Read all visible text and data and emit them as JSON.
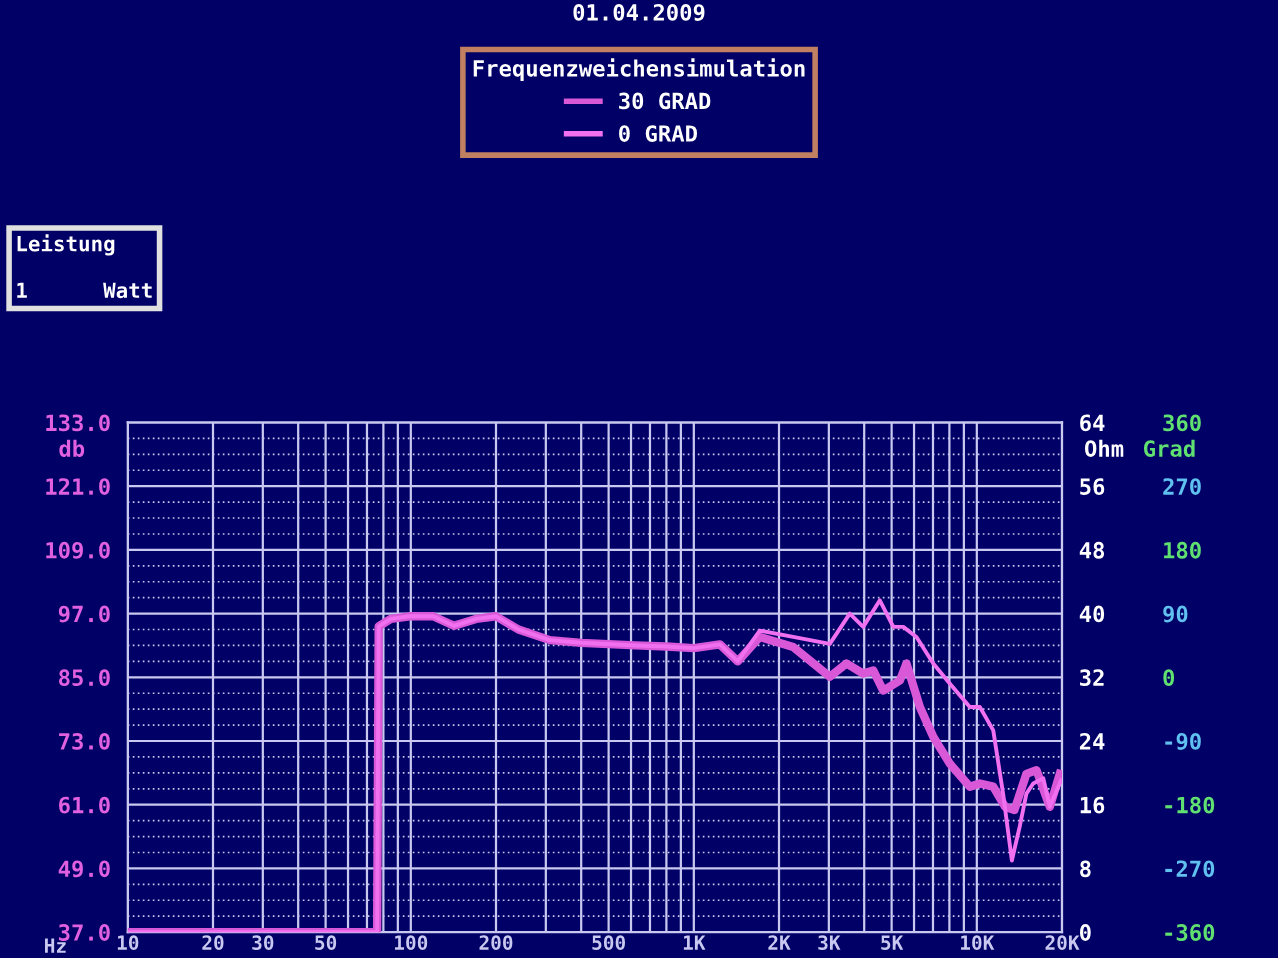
{
  "chart_data": {
    "type": "line",
    "title": "Frequenzweichensimulation",
    "xlabel": "Hz",
    "ylabel": "db",
    "y2label": "Ohm",
    "y3label": "Grad",
    "annotations": [
      "01.04.2009",
      "Leistung",
      "1      Watt"
    ],
    "log": "x",
    "grid": true,
    "legend": "top",
    "marker": "none",
    "line_style": "solid",
    "xlim": [
      10,
      20000
    ],
    "xticks": [
      10,
      20,
      30,
      {
        "value": 40,
        "label": null
      },
      50,
      {
        "value": 60,
        "label": null
      },
      {
        "value": 70,
        "label": null
      },
      {
        "value": 80,
        "label": null
      },
      {
        "value": 90,
        "label": null
      },
      100,
      200,
      {
        "value": 300,
        "label": null
      },
      {
        "value": 400,
        "label": null
      },
      500,
      {
        "value": 600,
        "label": null
      },
      {
        "value": 700,
        "label": null
      },
      {
        "value": 800,
        "label": null
      },
      {
        "value": 900,
        "label": null
      },
      {
        "value": 1000,
        "label": "1K"
      },
      {
        "value": 2000,
        "label": "2K"
      },
      {
        "value": 3000,
        "label": "3K"
      },
      {
        "value": 4000,
        "label": null
      },
      {
        "value": 5000,
        "label": "5K"
      },
      {
        "value": 6000,
        "label": null
      },
      {
        "value": 7000,
        "label": null
      },
      {
        "value": 8000,
        "label": null
      },
      {
        "value": 9000,
        "label": null
      },
      {
        "value": 10000,
        "label": "10K"
      },
      {
        "value": 20000,
        "label": "20K"
      }
    ],
    "ylim": [
      37,
      133
    ],
    "yticks": [
      {
        "value": 37,
        "label": "37.0"
      },
      {
        "value": 40,
        "label": null
      },
      {
        "value": 43,
        "label": null
      },
      {
        "value": 46,
        "label": null
      },
      {
        "value": 49,
        "label": "49.0"
      },
      {
        "value": 52,
        "label": null
      },
      {
        "value": 55,
        "label": null
      },
      {
        "value": 58,
        "label": null
      },
      {
        "value": 61,
        "label": "61.0"
      },
      {
        "value": 64,
        "label": null
      },
      {
        "value": 67,
        "label": null
      },
      {
        "value": 70,
        "label": null
      },
      {
        "value": 73,
        "label": "73.0"
      },
      {
        "value": 76,
        "label": null
      },
      {
        "value": 79,
        "label": null
      },
      {
        "value": 82,
        "label": null
      },
      {
        "value": 85,
        "label": "85.0"
      },
      {
        "value": 88,
        "label": null
      },
      {
        "value": 91,
        "label": null
      },
      {
        "value": 94,
        "label": null
      },
      {
        "value": 97,
        "label": "97.0"
      },
      {
        "value": 100,
        "label": null
      },
      {
        "value": 103,
        "label": null
      },
      {
        "value": 106,
        "label": null
      },
      {
        "value": 109,
        "label": "109.0"
      },
      {
        "value": 112,
        "label": null
      },
      {
        "value": 115,
        "label": null
      },
      {
        "value": 118,
        "label": null
      },
      {
        "value": 121,
        "label": "121.0"
      },
      {
        "value": 124,
        "label": null
      },
      {
        "value": 127,
        "label": null
      },
      {
        "value": 130,
        "label": null
      },
      {
        "value": 133,
        "label": "133.0"
      }
    ],
    "y2lim": [
      0,
      64
    ],
    "y2ticks": [
      0,
      8,
      16,
      24,
      32,
      40,
      48,
      56,
      64
    ],
    "y3lim": [
      -360,
      360
    ],
    "y3ticks": [
      -360,
      -270,
      -180,
      -90,
      0,
      90,
      180,
      270,
      360
    ],
    "series": [
      {
        "name": "30 GRAD",
        "color": "#d858d8",
        "x": [
          10,
          76,
          77,
          85,
          99,
          120,
          142,
          170,
          200,
          240,
          310,
          400,
          623,
          800,
          1000,
          1236,
          1430,
          1710,
          2244,
          3024,
          3463,
          3968,
          4306,
          4670,
          5348,
          5641,
          6292,
          7015,
          8035,
          9446,
          10250,
          11430,
          12590,
          13580,
          14970,
          16250,
          18110,
          19640
        ],
        "values": [
          37,
          37,
          94.6,
          96,
          96.5,
          96.5,
          94.7,
          96,
          96.5,
          94,
          92,
          91.5,
          91,
          90.8,
          90.5,
          91.2,
          88,
          92.6,
          90.7,
          85.1,
          87.6,
          85.7,
          86.3,
          82.5,
          84.4,
          87.6,
          79.4,
          73.8,
          68.7,
          64.4,
          65.0,
          64.4,
          60.6,
          60.0,
          66.8,
          67.5,
          60.6,
          66.8
        ]
      },
      {
        "name": "0 GRAD",
        "color": "#f070f0",
        "x": [
          10,
          76,
          77,
          85,
          99,
          120,
          142,
          170,
          200,
          240,
          310,
          400,
          623,
          800,
          1000,
          1236,
          1430,
          1710,
          2244,
          3024,
          3557,
          3968,
          4542,
          5070,
          5497,
          6120,
          7015,
          8035,
          9446,
          10250,
          11430,
          12390,
          13300,
          14190,
          14970,
          15820,
          17170,
          18110,
          19850
        ],
        "values": [
          37,
          37,
          94.6,
          96,
          96.5,
          96.5,
          94.7,
          96,
          96.5,
          94,
          92,
          91.5,
          91,
          90.8,
          90.5,
          91.2,
          88,
          93.8,
          92.6,
          91.3,
          97.0,
          94.5,
          99.5,
          94.5,
          94.5,
          92.6,
          87.6,
          83.8,
          79.4,
          79.4,
          75.0,
          63,
          50.5,
          57,
          63.1,
          65,
          66,
          60.6,
          65.6
        ]
      }
    ]
  }
}
